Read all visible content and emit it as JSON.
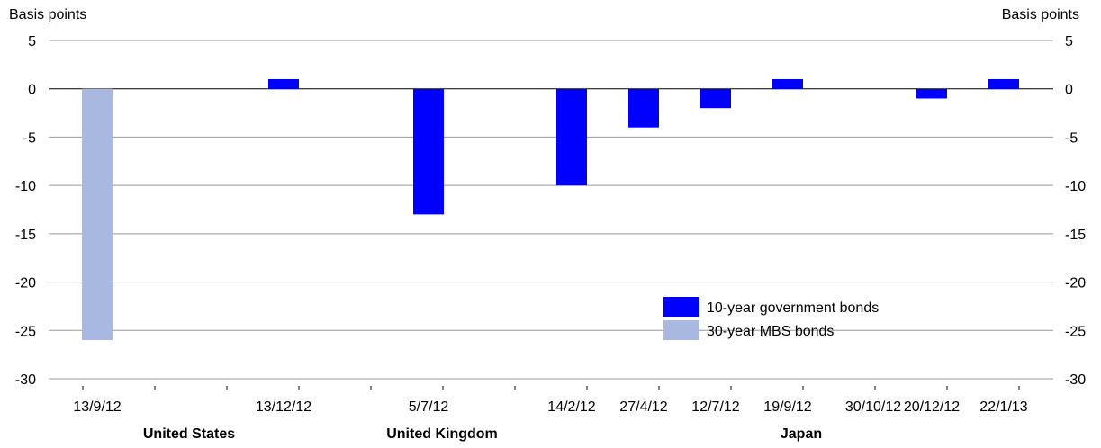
{
  "chart_data": {
    "type": "bar",
    "ylabel_left": "Basis points",
    "ylabel_right": "Basis points",
    "ylim": [
      -30,
      5
    ],
    "yticks": [
      5,
      0,
      -5,
      -10,
      -15,
      -20,
      -25,
      -30
    ],
    "grid": true,
    "legend_position": "bottom-right",
    "categories": [
      "13/9/12",
      "13/12/12",
      "5/7/12",
      "14/2/12",
      "27/4/12",
      "12/7/12",
      "19/9/12",
      "30/10/12",
      "20/12/12",
      "22/1/13"
    ],
    "groups": [
      {
        "name": "United States",
        "categories": [
          "13/9/12",
          "13/12/12"
        ]
      },
      {
        "name": "United Kingdom",
        "categories": [
          "5/7/12"
        ]
      },
      {
        "name": "Japan",
        "categories": [
          "14/2/12",
          "27/4/12",
          "12/7/12",
          "19/9/12",
          "30/10/12",
          "20/12/12",
          "22/1/13"
        ]
      }
    ],
    "series": [
      {
        "name": "10-year government bonds",
        "color": "#0000ff",
        "values": [
          null,
          1,
          -13,
          -10,
          -4,
          -2,
          1,
          0,
          -1,
          1
        ]
      },
      {
        "name": "30-year MBS bonds",
        "color": "#a8b8e0",
        "values": [
          -26,
          null,
          null,
          null,
          null,
          null,
          null,
          null,
          null,
          null
        ]
      }
    ]
  }
}
